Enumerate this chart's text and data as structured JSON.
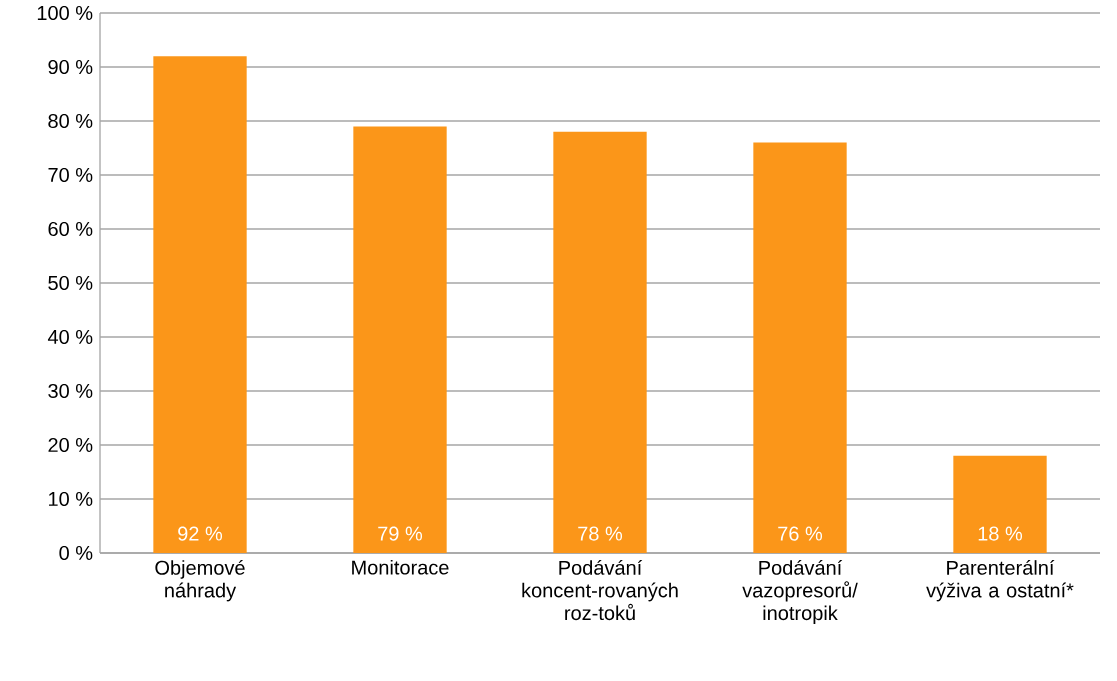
{
  "chart_data": {
    "type": "bar",
    "categories": [
      "Objemové náhrady",
      "Monitorace",
      "Podávání koncent-rovaných roz-toků",
      "Podávání vazopresorů/ inotropik",
      "Parenterální výživa a ostatní*"
    ],
    "values": [
      92,
      79,
      78,
      76,
      18
    ],
    "value_labels": [
      "92 %",
      "79 %",
      "78 %",
      "76 %",
      "18 %"
    ],
    "color": "#fb9619",
    "ylim": [
      0,
      100
    ],
    "yticks": [
      {
        "value": 0,
        "label": "0 %"
      },
      {
        "value": 10,
        "label": "10 %"
      },
      {
        "value": 20,
        "label": "20 %"
      },
      {
        "value": 30,
        "label": "30 %"
      },
      {
        "value": 40,
        "label": "40 %"
      },
      {
        "value": 50,
        "label": "50 %"
      },
      {
        "value": 60,
        "label": "60 %"
      },
      {
        "value": 70,
        "label": "70 %"
      },
      {
        "value": 80,
        "label": "80 %"
      },
      {
        "value": 90,
        "label": "90 %"
      },
      {
        "value": 100,
        "label": "100 %"
      }
    ],
    "grid": "y"
  }
}
